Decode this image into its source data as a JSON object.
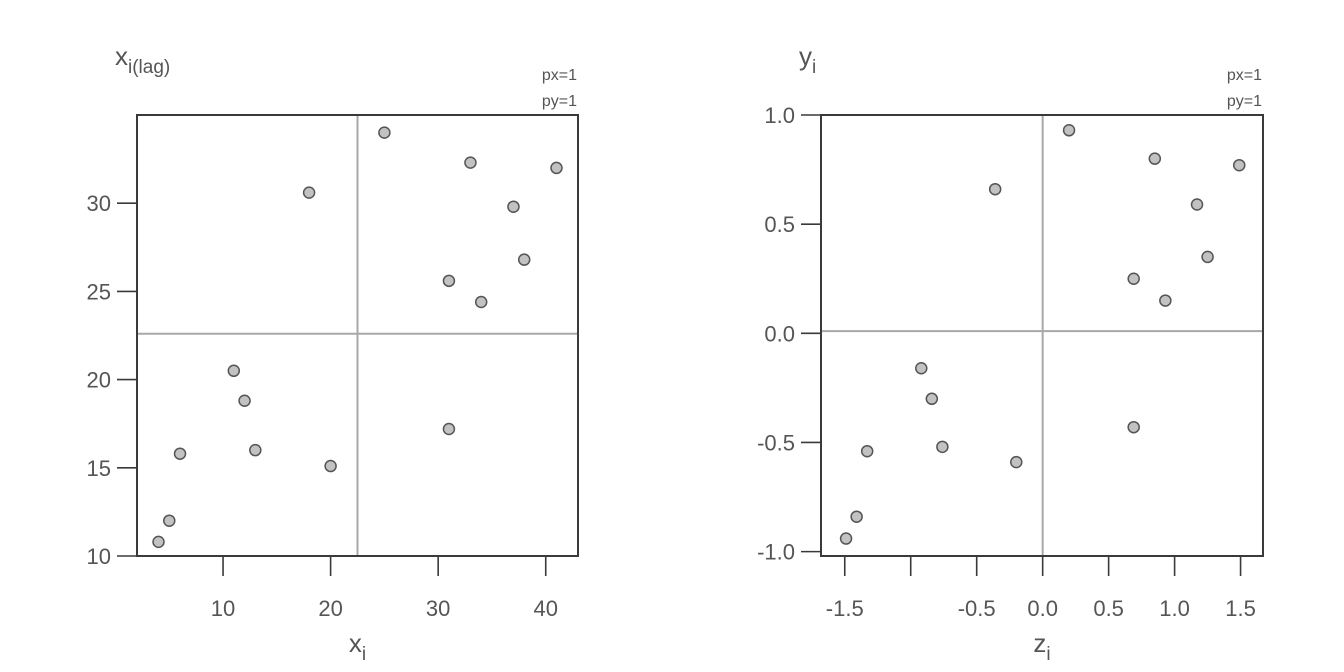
{
  "chart_data": [
    {
      "type": "scatter",
      "xlabel": {
        "main": "x",
        "sub": "i"
      },
      "ylabel": {
        "main": "x",
        "sub": "i(lag)"
      },
      "annotations": [
        "px=1",
        "py=1"
      ],
      "xlim": [
        2,
        43
      ],
      "ylim": [
        10,
        35
      ],
      "xticks": [
        10,
        20,
        30,
        40
      ],
      "yticks": [
        10,
        15,
        20,
        25,
        30
      ],
      "xtick_labels": [
        "10",
        "20",
        "30",
        "40"
      ],
      "ytick_labels": [
        "10",
        "15",
        "20",
        "25",
        "30"
      ],
      "reference_lines": {
        "x": 22.5,
        "y": 22.6
      },
      "points": [
        {
          "x": 4,
          "y": 10.8
        },
        {
          "x": 5,
          "y": 12
        },
        {
          "x": 6,
          "y": 15.8
        },
        {
          "x": 11,
          "y": 20.5
        },
        {
          "x": 12,
          "y": 18.8
        },
        {
          "x": 13,
          "y": 16
        },
        {
          "x": 18,
          "y": 30.6
        },
        {
          "x": 20,
          "y": 15.1
        },
        {
          "x": 25,
          "y": 34
        },
        {
          "x": 31,
          "y": 25.6
        },
        {
          "x": 31,
          "y": 17.2
        },
        {
          "x": 33,
          "y": 32.3
        },
        {
          "x": 34,
          "y": 24.4
        },
        {
          "x": 37,
          "y": 29.8
        },
        {
          "x": 38,
          "y": 26.8
        },
        {
          "x": 41,
          "y": 32
        }
      ]
    },
    {
      "type": "scatter",
      "xlabel": {
        "main": "z",
        "sub": "i"
      },
      "ylabel": {
        "main": "y",
        "sub": "i"
      },
      "annotations": [
        "px=1",
        "py=1"
      ],
      "xlim": [
        -1.68,
        1.67
      ],
      "ylim": [
        -1.02,
        1.0
      ],
      "xticks": [
        -1.5,
        -1.0,
        -0.5,
        0.0,
        0.5,
        1.0,
        1.5
      ],
      "yticks": [
        -1.0,
        -0.5,
        0.0,
        0.5,
        1.0
      ],
      "xtick_labels": [
        "-1.5",
        "",
        "-0.5",
        "0.0",
        "0.5",
        "1.0",
        "1.5"
      ],
      "ytick_labels": [
        "-1.0",
        "-0.5",
        "0.0",
        "0.5",
        "1.0"
      ],
      "reference_lines": {
        "x": 0.0,
        "y": 0.01
      },
      "points": [
        {
          "x": -1.49,
          "y": -0.94
        },
        {
          "x": -1.41,
          "y": -0.84
        },
        {
          "x": -1.33,
          "y": -0.54
        },
        {
          "x": -0.92,
          "y": -0.16
        },
        {
          "x": -0.84,
          "y": -0.3
        },
        {
          "x": -0.76,
          "y": -0.52
        },
        {
          "x": -0.36,
          "y": 0.66
        },
        {
          "x": -0.2,
          "y": -0.59
        },
        {
          "x": 0.2,
          "y": 0.93
        },
        {
          "x": 0.69,
          "y": 0.25
        },
        {
          "x": 0.69,
          "y": -0.43
        },
        {
          "x": 0.85,
          "y": 0.8
        },
        {
          "x": 0.93,
          "y": 0.15
        },
        {
          "x": 1.17,
          "y": 0.59
        },
        {
          "x": 1.25,
          "y": 0.35
        },
        {
          "x": 1.49,
          "y": 0.77
        }
      ]
    }
  ]
}
